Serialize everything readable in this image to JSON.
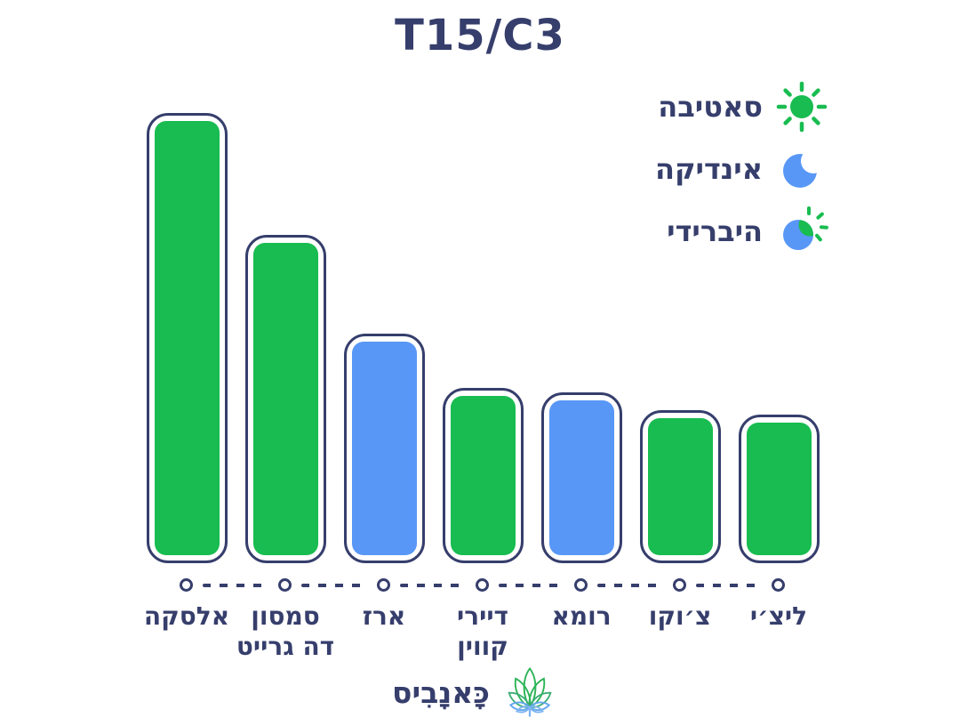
{
  "title": "T15/C3",
  "colors": {
    "navy": "#363E6C",
    "sativa": "#18BC50",
    "indica": "#5897F6"
  },
  "legend": {
    "items": [
      {
        "label": "סאטיבה",
        "icon": "sun-icon",
        "color": "#18BC50"
      },
      {
        "label": "אינדיקה",
        "icon": "moon-icon",
        "color": "#5897F6"
      },
      {
        "label": "היברידי",
        "icon": "hybrid-icon",
        "color": "mixed"
      }
    ]
  },
  "chart_data": {
    "type": "bar",
    "title": "T15/C3",
    "orientation": "vertical",
    "grid": false,
    "legend_position": "top-right",
    "categories": [
      "אלסקה",
      "סמסון דה גרייט",
      "ארז",
      "דיירי קווין",
      "רומא",
      "צ׳וקו",
      "ליצ׳י"
    ],
    "values": [
      100,
      73,
      51,
      39,
      38,
      34,
      33
    ],
    "value_unit": "relative height, % of tallest bar (no numeric axis shown)",
    "bar_types": [
      "סאטיבה",
      "סאטיבה",
      "אינדיקה",
      "סאטיבה",
      "אינדיקה",
      "סאטיבה",
      "סאטיבה"
    ],
    "bar_colors": [
      "#18BC50",
      "#18BC50",
      "#5897F6",
      "#18BC50",
      "#5897F6",
      "#18BC50",
      "#18BC50"
    ]
  },
  "bars": [
    {
      "label_lines": [
        "אלסקה"
      ],
      "value": 100,
      "type": "sativa"
    },
    {
      "label_lines": [
        "סמסון",
        "דה גרייט"
      ],
      "value": 73,
      "type": "sativa"
    },
    {
      "label_lines": [
        "ארז"
      ],
      "value": 51,
      "type": "indica"
    },
    {
      "label_lines": [
        "דיירי",
        "קווין"
      ],
      "value": 39,
      "type": "sativa"
    },
    {
      "label_lines": [
        "רומא"
      ],
      "value": 38,
      "type": "indica"
    },
    {
      "label_lines": [
        "צ׳וקו"
      ],
      "value": 34,
      "type": "sativa"
    },
    {
      "label_lines": [
        "ליצ׳י"
      ],
      "value": 33,
      "type": "sativa"
    }
  ],
  "logo": {
    "text": "כָּאנָבִיס"
  }
}
